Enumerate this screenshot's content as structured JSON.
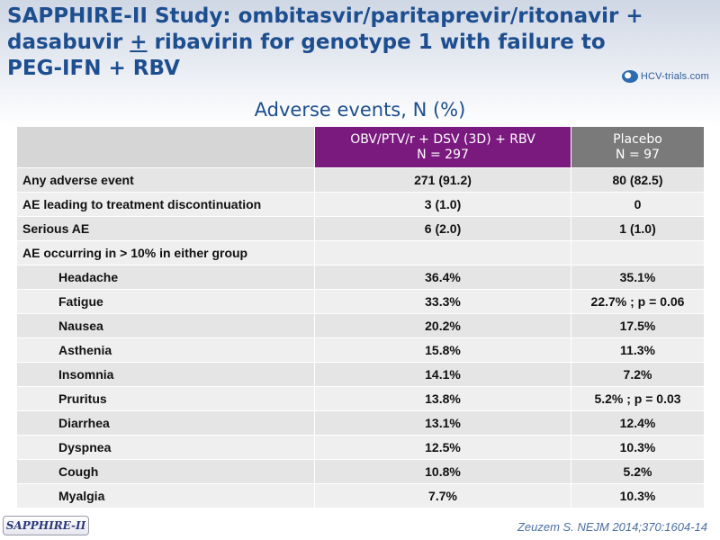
{
  "slide": {
    "title_part1": "SAPPHIRE-II Study: ombitasvir/paritaprevir/ritonavir + dasabuvir ",
    "title_underlined": "+",
    "title_part2": " ribavirin for genotype 1 with failure to PEG-IFN + RBV",
    "logo_text": "HCV-trials.com",
    "subtitle": "Adverse events, N (%)",
    "badge": "SAPPHIRE-II",
    "citation": "Zeuzem S. NEJM 2014;370:1604-14"
  },
  "table": {
    "headers": {
      "arm_line1": "OBV/PTV/r + DSV (3D) + RBV",
      "arm_line2": "N = 297",
      "placebo_line1": "Placebo",
      "placebo_line2": "N = 97"
    },
    "rows": [
      {
        "label": "Any adverse event",
        "arm": "271 (91.2)",
        "placebo": "80 (82.5)"
      },
      {
        "label": "AE leading to treatment discontinuation",
        "arm": "3 (1.0)",
        "placebo": "0"
      },
      {
        "label": "Serious AE",
        "arm": "6 (2.0)",
        "placebo": "1 (1.0)"
      },
      {
        "label": "AE occurring in > 10% in either group",
        "arm": "",
        "placebo": ""
      },
      {
        "label": "Headache",
        "arm": "36.4%",
        "placebo": "35.1%"
      },
      {
        "label": "Fatigue",
        "arm": "33.3%",
        "placebo": "22.7% ; p = 0.06"
      },
      {
        "label": "Nausea",
        "arm": "20.2%",
        "placebo": "17.5%"
      },
      {
        "label": "Asthenia",
        "arm": "15.8%",
        "placebo": "11.3%"
      },
      {
        "label": "Insomnia",
        "arm": "14.1%",
        "placebo": "7.2%"
      },
      {
        "label": "Pruritus",
        "arm": "13.8%",
        "placebo": "5.2% ; p = 0.03"
      },
      {
        "label": "Diarrhea",
        "arm": "13.1%",
        "placebo": "12.4%"
      },
      {
        "label": "Dyspnea",
        "arm": "12.5%",
        "placebo": "10.3%"
      },
      {
        "label": "Cough",
        "arm": "10.8%",
        "placebo": "5.2%"
      },
      {
        "label": "Myalgia",
        "arm": "7.7%",
        "placebo": "10.3%"
      }
    ]
  },
  "colors": {
    "title": "#1d4e8f",
    "arm_header": "#7a1a7f",
    "placebo_header": "#7a7a7a",
    "row_odd": "#e5e5e5",
    "row_even": "#efefef"
  }
}
